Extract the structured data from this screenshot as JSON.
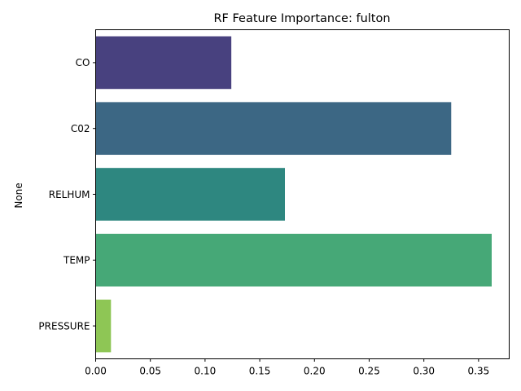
{
  "chart_data": {
    "type": "bar",
    "orientation": "horizontal",
    "title": "RF Feature Importance: fulton",
    "xlabel": "",
    "ylabel": "None",
    "categories": [
      "CO",
      "C02",
      "RELHUM",
      "TEMP",
      "PRESSURE"
    ],
    "values": [
      0.124,
      0.325,
      0.173,
      0.362,
      0.014
    ],
    "colors": [
      "#48417f",
      "#3c6784",
      "#2e8780",
      "#46a877",
      "#8ec655"
    ],
    "xlim": [
      0,
      0.378
    ],
    "xticks": [
      "0.00",
      "0.05",
      "0.10",
      "0.15",
      "0.20",
      "0.25",
      "0.30",
      "0.35"
    ],
    "xtick_values": [
      0,
      0.05,
      0.1,
      0.15,
      0.2,
      0.25,
      0.3,
      0.35
    ],
    "grid": false,
    "legend": "none"
  }
}
